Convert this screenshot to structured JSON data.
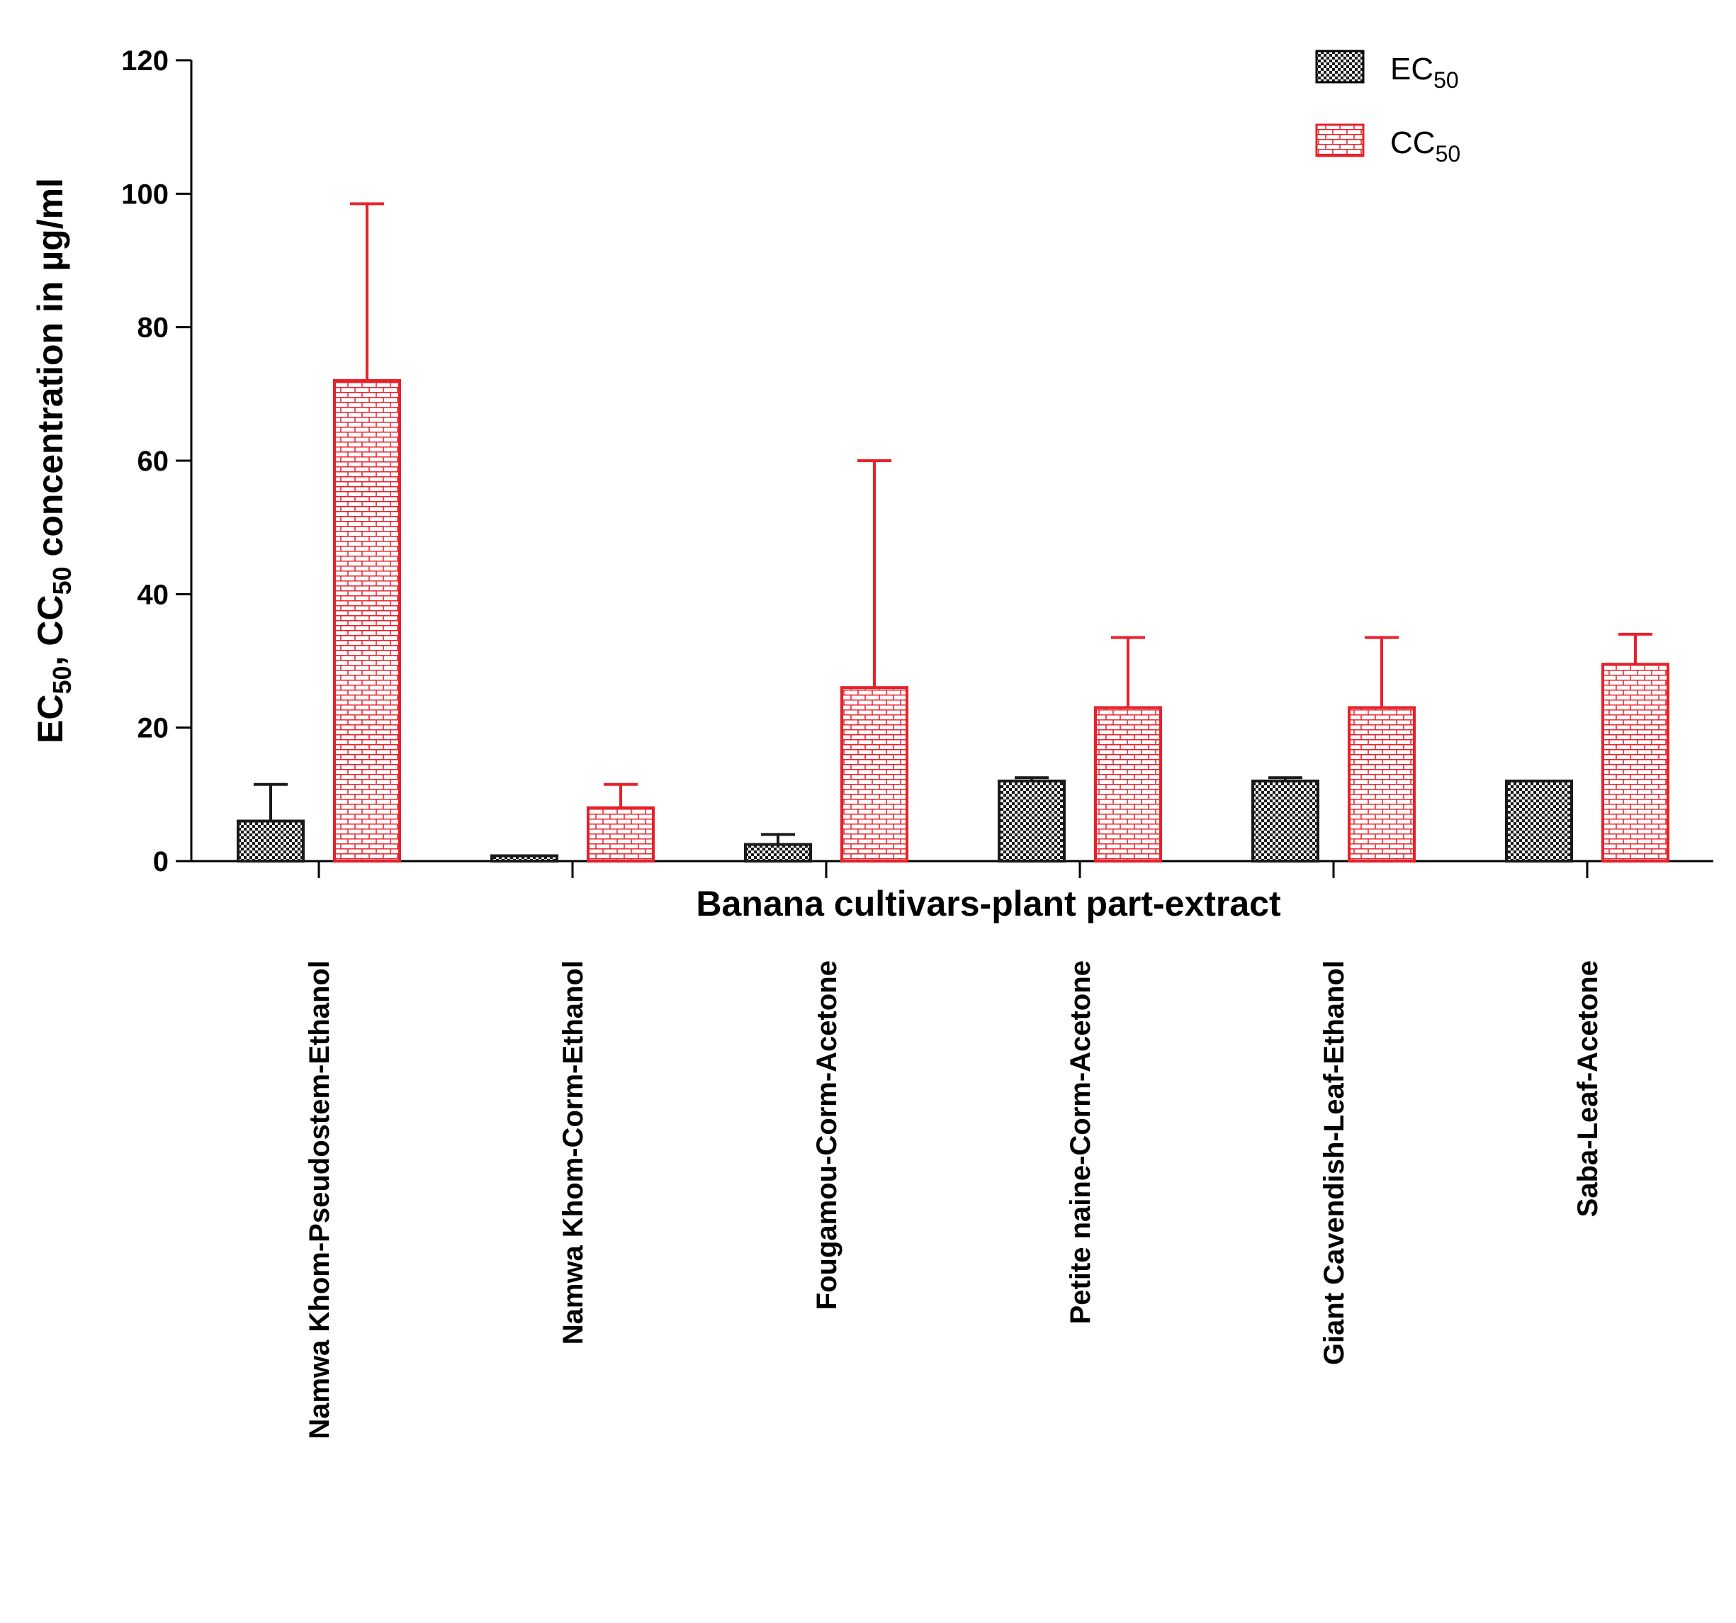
{
  "chart_data": {
    "type": "bar",
    "title": "",
    "xlabel": "Banana cultivars-plant part-extract",
    "ylabel_parts": {
      "ec": "EC",
      "ec_sub": "50",
      "sep": ", ",
      "cc": "CC",
      "cc_sub": "50",
      "rest": " concentration in µg/ml"
    },
    "ylim": [
      0,
      120
    ],
    "yticks": [
      0,
      20,
      40,
      60,
      80,
      100,
      120
    ],
    "categories": [
      "Namwa Khom-Pseudostem-Ethanol",
      "Namwa Khom-Corm-Ethanol",
      "Fougamou-Corm-Acetone",
      "Petite naine-Corm-Acetone",
      "Giant Cavendish-Leaf-Ethanol",
      "Saba-Leaf-Acetone"
    ],
    "series": [
      {
        "name": "EC50",
        "legend_main": "EC",
        "legend_sub": "50",
        "color": "#1a1a1a",
        "values": [
          6,
          0.8,
          2.5,
          12,
          12,
          12
        ],
        "error_upper": [
          11.5,
          0.8,
          4,
          12.5,
          12.5,
          12
        ]
      },
      {
        "name": "CC50",
        "legend_main": "CC",
        "legend_sub": "50",
        "color": "#e8202a",
        "values": [
          72,
          8,
          26,
          23,
          23,
          29.5
        ],
        "error_upper": [
          98.5,
          11.5,
          60,
          33.5,
          33.5,
          34
        ]
      }
    ],
    "legend_position": "top-right",
    "grid": false
  }
}
